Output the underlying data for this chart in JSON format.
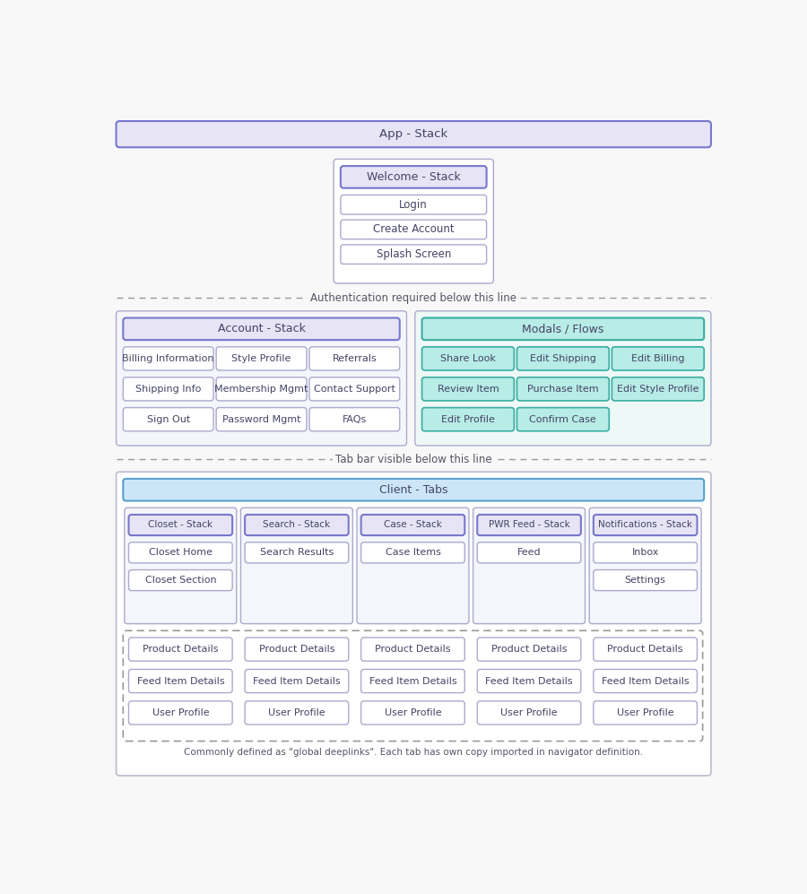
{
  "bg_color": "#f8f8f8",
  "title": "App - Stack",
  "auth_line_text": "Authentication required below this line",
  "tab_line_text": "Tab bar visible below this line",
  "welcome_stack_label": "Welcome - Stack",
  "welcome_items": [
    "Login",
    "Create Account",
    "Splash Screen"
  ],
  "account_stack_label": "Account - Stack",
  "account_items": [
    [
      "Billing Information",
      "Style Profile",
      "Referrals"
    ],
    [
      "Shipping Info",
      "Membership Mgmt",
      "Contact Support"
    ],
    [
      "Sign Out",
      "Password Mgmt",
      "FAQs"
    ]
  ],
  "modals_label": "Modals / Flows",
  "modals_items": [
    [
      "Share Look",
      "Edit Shipping",
      "Edit Billing"
    ],
    [
      "Review Item",
      "Purchase Item",
      "Edit Style Profile"
    ],
    [
      "Edit Profile",
      "Confirm Case"
    ]
  ],
  "client_tabs_label": "Client - Tabs",
  "tab_stacks": [
    {
      "label": "Closet - Stack",
      "items": [
        "Closet Home",
        "Closet Section"
      ]
    },
    {
      "label": "Search - Stack",
      "items": [
        "Search Results"
      ]
    },
    {
      "label": "Case - Stack",
      "items": [
        "Case Items"
      ]
    },
    {
      "label": "PWR Feed - Stack",
      "items": [
        "Feed"
      ]
    },
    {
      "label": "Notifications - Stack",
      "items": [
        "Inbox",
        "Settings"
      ]
    }
  ],
  "deeplink_items": [
    "Product Details",
    "Feed Item Details",
    "User Profile"
  ],
  "deeplink_note": "Commonly defined as \"global deeplinks\". Each tab has own copy imported in navigator definition.",
  "c_purple_fill": "#e6e4f5",
  "c_purple_border": "#7878cc",
  "c_teal_fill": "#b8ece6",
  "c_teal_border": "#38aea0",
  "c_blue_fill": "#cce6f8",
  "c_blue_border": "#58a0cc",
  "c_white": "#ffffff",
  "c_white_border": "#aaaacc",
  "c_box_bg": "#f5f5fc",
  "c_teal_box_bg": "#eef8f6",
  "c_blue_box_bg": "#eef6fc",
  "c_dash": "#999999",
  "c_text": "#444466",
  "c_outer_border": "#bbbbcc"
}
